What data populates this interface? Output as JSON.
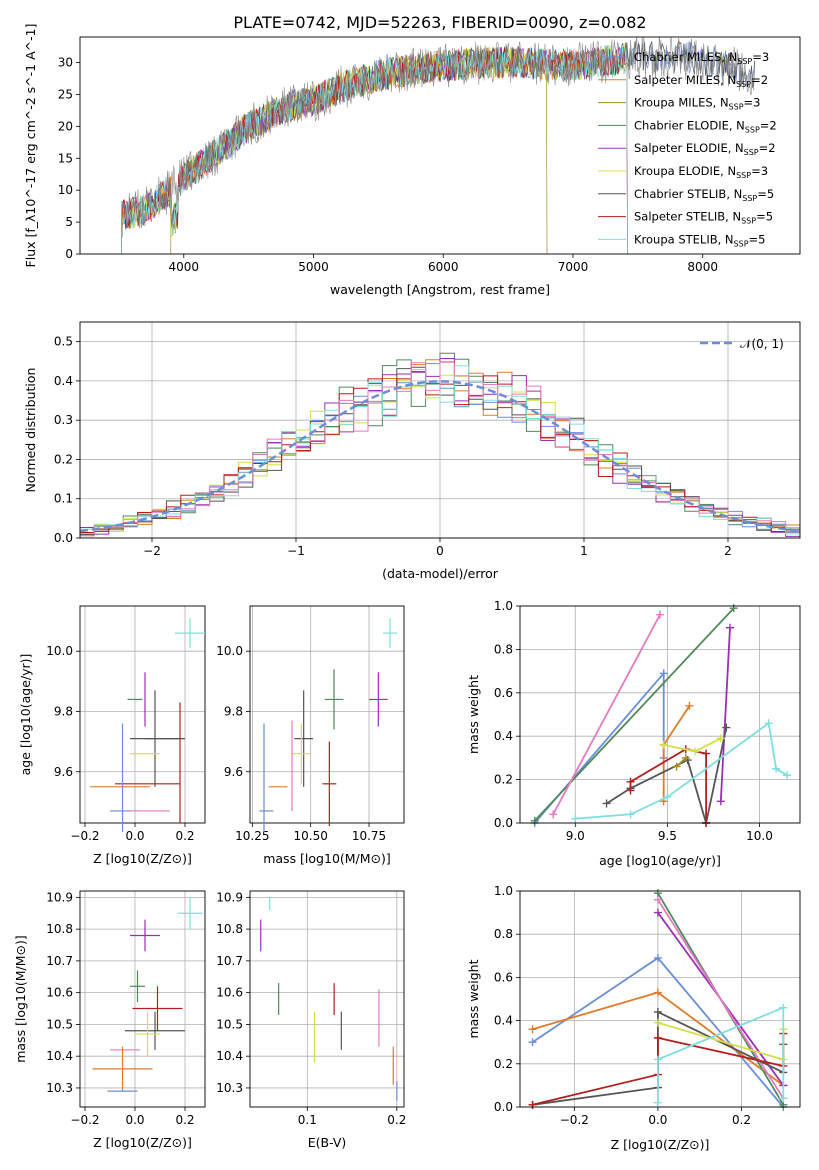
{
  "figure_title": "PLATE=0742, MJD=52263, FIBERID=0090, z=0.082",
  "colors": {
    "chabrier_miles": "#6b8ed6",
    "salpeter_miles": "#e07b2a",
    "kroupa_miles": "#a58a2a",
    "chabrier_elodie": "#4f8a5b",
    "salpeter_elodie": "#9b30b5",
    "kroupa_elodie": "#d4e04a",
    "chabrier_stelib": "#555555",
    "salpeter_stelib": "#b51e1e",
    "kroupa_stelib": "#7fdfe0",
    "pink": "#e67bbf",
    "normal_curve": "#6b8ed6"
  },
  "chart_data": [
    {
      "id": "spectrum",
      "type": "line",
      "title": "PLATE=0742, MJD=52263, FIBERID=0090, z=0.082",
      "xlabel": "wavelength [Angstrom, rest frame]",
      "ylabel": "Flux [f_λ10^-17 erg cm^-2 s^-1 A^-1]",
      "xlim": [
        3200,
        8750
      ],
      "ylim": [
        0,
        34
      ],
      "xticks": [
        4000,
        5000,
        6000,
        7000,
        8000
      ],
      "yticks": [
        0,
        5,
        10,
        15,
        20,
        25,
        30
      ],
      "legend_position": "top-right",
      "legend": [
        "Chabrier MILES, N_SSP=3",
        "Salpeter MILES, N_SSP=2",
        "Kroupa MILES, N_SSP=3",
        "Chabrier ELODIE, N_SSP=2",
        "Salpeter ELODIE, N_SSP=2",
        "Kroupa ELODIE, N_SSP=3",
        "Chabrier STELIB, N_SSP=5",
        "Salpeter STELIB, N_SSP=5",
        "Kroupa STELIB, N_SSP=5"
      ],
      "continuum": {
        "x": [
          3520,
          3700,
          3900,
          4000,
          4200,
          4500,
          4800,
          5000,
          5200,
          5500,
          5800,
          6000,
          6300,
          6600,
          6900,
          7200,
          7500,
          7800,
          8100,
          8400
        ],
        "y": [
          6,
          7,
          10,
          12,
          15,
          20,
          23,
          24,
          26,
          28,
          29,
          29.5,
          30,
          30,
          29.5,
          30,
          31,
          31,
          30,
          28
        ]
      },
      "model_ranges": [
        {
          "series": 0,
          "x0": 3520,
          "x1": 8400
        },
        {
          "series": 1,
          "x0": 3520,
          "x1": 7420
        },
        {
          "series": 2,
          "x0": 3900,
          "x1": 6800
        },
        {
          "series": 3,
          "x0": 3520,
          "x1": 7420
        },
        {
          "series": 4,
          "x0": 3520,
          "x1": 7420
        },
        {
          "series": 5,
          "x0": 3520,
          "x1": 7420
        },
        {
          "series": 6,
          "x0": 3520,
          "x1": 8400
        },
        {
          "series": 7,
          "x0": 3520,
          "x1": 7420
        },
        {
          "series": 8,
          "x0": 3520,
          "x1": 7420
        }
      ]
    },
    {
      "id": "residual_hist",
      "type": "bar",
      "xlabel": "(data-model)/error",
      "ylabel": "Normed distribution",
      "xlim": [
        -2.5,
        2.5
      ],
      "ylim": [
        0,
        0.55
      ],
      "xticks": [
        -2,
        -1,
        0,
        1,
        2
      ],
      "yticks": [
        0.0,
        0.1,
        0.2,
        0.3,
        0.4,
        0.5
      ],
      "bin_width": 0.1,
      "legend": [
        "𝒩(0, 1)"
      ],
      "legend_position": "top-right",
      "grid": true
    },
    {
      "id": "age_vs_Z",
      "type": "scatter",
      "xlabel": "Z [log10(Z/Z⊙)]",
      "ylabel": "age [log10(age/yr)]",
      "xlim": [
        -0.22,
        0.28
      ],
      "ylim": [
        9.43,
        10.15
      ],
      "xticks": [
        -0.2,
        0.0,
        0.2
      ],
      "yticks": [
        9.6,
        9.8,
        10.0
      ],
      "points": [
        {
          "x": 0.22,
          "y": 10.06,
          "xerr": 0.06,
          "yerr": 0.05,
          "series": 8
        },
        {
          "x": 0.04,
          "y": 9.84,
          "xerr": 0.0,
          "yerr": 0.09,
          "series": 4
        },
        {
          "x": 0.0,
          "y": 9.84,
          "xerr": 0.03,
          "yerr": 0.0,
          "series": 3
        },
        {
          "x": 0.08,
          "y": 9.71,
          "xerr": 0.1,
          "yerr": 0.16,
          "series": 6
        },
        {
          "x": 0.12,
          "y": 9.71,
          "xerr": 0.08,
          "yerr": 0.0,
          "series": 6
        },
        {
          "x": 0.18,
          "y": 9.63,
          "xerr": 0.0,
          "yerr": 0.2,
          "series": 7
        },
        {
          "x": 0.05,
          "y": 9.56,
          "xerr": 0.13,
          "yerr": 0.0,
          "series": 7
        },
        {
          "x": 0.04,
          "y": 9.66,
          "xerr": 0.06,
          "yerr": 0.0,
          "series": 5
        },
        {
          "x": -0.05,
          "y": 9.58,
          "xerr": 0.0,
          "yerr": 0.18,
          "series": 0
        },
        {
          "x": -0.06,
          "y": 9.55,
          "xerr": 0.12,
          "yerr": 0.0,
          "series": 1
        },
        {
          "x": -0.04,
          "y": 9.47,
          "xerr": 0.06,
          "yerr": 0.0,
          "series": 0
        },
        {
          "x": 0.06,
          "y": 9.47,
          "xerr": 0.08,
          "yerr": 0.0,
          "series": 9
        }
      ]
    },
    {
      "id": "age_vs_mass",
      "type": "scatter",
      "xlabel": "mass [log10(M/M⊙)]",
      "ylabel": "",
      "xlim": [
        10.24,
        10.9
      ],
      "ylim": [
        9.43,
        10.15
      ],
      "xticks": [
        10.25,
        10.5,
        10.75
      ],
      "yticks": [
        9.6,
        9.8,
        10.0
      ],
      "points": [
        {
          "x": 10.84,
          "y": 10.06,
          "xerr": 0.03,
          "yerr": 0.05,
          "series": 8
        },
        {
          "x": 10.79,
          "y": 9.84,
          "xerr": 0.04,
          "yerr": 0.09,
          "series": 4
        },
        {
          "x": 10.6,
          "y": 9.84,
          "xerr": 0.04,
          "yerr": 0.1,
          "series": 3
        },
        {
          "x": 10.47,
          "y": 9.71,
          "xerr": 0.04,
          "yerr": 0.16,
          "series": 6
        },
        {
          "x": 10.58,
          "y": 9.56,
          "xerr": 0.03,
          "yerr": 0.14,
          "series": 7
        },
        {
          "x": 10.46,
          "y": 9.66,
          "xerr": 0.04,
          "yerr": 0.1,
          "series": 5
        },
        {
          "x": 10.36,
          "y": 9.55,
          "xerr": 0.04,
          "yerr": 0.0,
          "series": 1
        },
        {
          "x": 10.3,
          "y": 9.58,
          "xerr": 0.0,
          "yerr": 0.18,
          "series": 0
        },
        {
          "x": 10.31,
          "y": 9.47,
          "xerr": 0.03,
          "yerr": 0.0,
          "series": 0
        },
        {
          "x": 10.42,
          "y": 9.62,
          "xerr": 0.0,
          "yerr": 0.15,
          "series": 9
        }
      ]
    },
    {
      "id": "massweight_vs_age",
      "type": "line",
      "xlabel": "age [log10(age/yr)]",
      "ylabel": "mass weight",
      "xlim": [
        8.7,
        10.22
      ],
      "ylim": [
        0,
        1
      ],
      "xticks": [
        9.0,
        9.5,
        10.0
      ],
      "yticks": [
        0.0,
        0.2,
        0.4,
        0.6,
        0.8,
        1.0
      ],
      "series": [
        {
          "series": 0,
          "x": [
            8.78,
            9.48,
            9.48
          ],
          "y": [
            0.0,
            0.69,
            0.3
          ]
        },
        {
          "series": 1,
          "x": [
            9.48,
            9.48,
            9.62
          ],
          "y": [
            0.1,
            0.36,
            0.54
          ]
        },
        {
          "series": 3,
          "x": [
            8.78,
            9.86
          ],
          "y": [
            0.01,
            0.99
          ]
        },
        {
          "series": 9,
          "x": [
            8.88,
            9.46
          ],
          "y": [
            0.04,
            0.96
          ]
        },
        {
          "series": 4,
          "x": [
            9.79,
            9.84
          ],
          "y": [
            0.1,
            0.9
          ]
        },
        {
          "series": 6,
          "x": [
            9.17,
            9.3,
            9.61,
            9.71,
            9.82
          ],
          "y": [
            0.09,
            0.16,
            0.29,
            0.0,
            0.44
          ]
        },
        {
          "series": 7,
          "x": [
            9.3,
            9.3,
            9.6,
            9.71,
            9.71
          ],
          "y": [
            0.15,
            0.19,
            0.34,
            0.32,
            0.0
          ]
        },
        {
          "series": 5,
          "x": [
            9.48,
            9.65,
            9.79
          ],
          "y": [
            0.36,
            0.33,
            0.39
          ]
        },
        {
          "series": 2,
          "x": [
            9.55,
            9.6
          ],
          "y": [
            0.26,
            0.3
          ]
        },
        {
          "series": 8,
          "x": [
            9.0,
            9.3,
            9.5,
            10.05,
            10.09,
            10.15
          ],
          "y": [
            0.02,
            0.04,
            0.12,
            0.46,
            0.25,
            0.22
          ]
        }
      ]
    },
    {
      "id": "mass_vs_Z",
      "type": "scatter",
      "xlabel": "Z [log10(Z/Z⊙)]",
      "ylabel": "mass [log10(M/M⊙)]",
      "xlim": [
        -0.22,
        0.28
      ],
      "ylim": [
        10.24,
        10.92
      ],
      "xticks": [
        -0.2,
        0.0,
        0.2
      ],
      "yticks": [
        10.3,
        10.4,
        10.5,
        10.6,
        10.7,
        10.8,
        10.9
      ],
      "points": [
        {
          "x": 0.22,
          "y": 10.85,
          "xerr": 0.05,
          "yerr": 0.05,
          "series": 8
        },
        {
          "x": 0.04,
          "y": 10.78,
          "xerr": 0.06,
          "yerr": 0.05,
          "series": 4
        },
        {
          "x": 0.01,
          "y": 10.62,
          "xerr": 0.03,
          "yerr": 0.05,
          "series": 3
        },
        {
          "x": 0.09,
          "y": 10.55,
          "xerr": 0.1,
          "yerr": 0.07,
          "series": 7
        },
        {
          "x": 0.08,
          "y": 10.48,
          "xerr": 0.12,
          "yerr": 0.06,
          "series": 6
        },
        {
          "x": 0.05,
          "y": 10.47,
          "xerr": 0.05,
          "yerr": 0.07,
          "series": 5
        },
        {
          "x": -0.04,
          "y": 10.42,
          "xerr": 0.06,
          "yerr": 0.0,
          "series": 9
        },
        {
          "x": -0.05,
          "y": 10.36,
          "xerr": 0.12,
          "yerr": 0.07,
          "series": 1
        },
        {
          "x": -0.05,
          "y": 10.29,
          "xerr": 0.06,
          "yerr": 0.0,
          "series": 0
        }
      ]
    },
    {
      "id": "mass_vs_ebv",
      "type": "scatter",
      "xlabel": "E(B-V)",
      "ylabel": "",
      "xlim": [
        0.036,
        0.208
      ],
      "ylim": [
        10.24,
        10.92
      ],
      "xticks": [
        0.1,
        0.2
      ],
      "yticks": [
        10.3,
        10.4,
        10.5,
        10.6,
        10.7,
        10.8,
        10.9
      ],
      "points": [
        {
          "x": 0.058,
          "y": 10.88,
          "yerr": 0.02,
          "series": 8
        },
        {
          "x": 0.048,
          "y": 10.78,
          "yerr": 0.05,
          "series": 4
        },
        {
          "x": 0.068,
          "y": 10.58,
          "yerr": 0.05,
          "series": 3
        },
        {
          "x": 0.13,
          "y": 10.58,
          "yerr": 0.05,
          "series": 7
        },
        {
          "x": 0.138,
          "y": 10.48,
          "yerr": 0.06,
          "series": 6
        },
        {
          "x": 0.108,
          "y": 10.46,
          "yerr": 0.08,
          "series": 5
        },
        {
          "x": 0.18,
          "y": 10.52,
          "yerr": 0.09,
          "series": 9
        },
        {
          "x": 0.196,
          "y": 10.37,
          "yerr": 0.06,
          "series": 1
        },
        {
          "x": 0.2,
          "y": 10.29,
          "yerr": 0.03,
          "series": 0
        }
      ]
    },
    {
      "id": "massweight_vs_Z",
      "type": "line",
      "xlabel": "Z [log10(Z/Z⊙)]",
      "ylabel": "mass weight",
      "xlim": [
        -0.33,
        0.34
      ],
      "ylim": [
        0,
        1
      ],
      "xticks": [
        -0.2,
        0.0,
        0.2
      ],
      "yticks": [
        0.0,
        0.2,
        0.4,
        0.6,
        0.8,
        1.0
      ],
      "series": [
        {
          "series": 0,
          "x": [
            -0.3,
            0.0,
            0.3
          ],
          "y": [
            0.3,
            0.69,
            0.0
          ]
        },
        {
          "series": 1,
          "x": [
            -0.3,
            0.0,
            0.3
          ],
          "y": [
            0.36,
            0.53,
            0.1
          ]
        },
        {
          "series": 3,
          "x": [
            0.0,
            0.3
          ],
          "y": [
            0.99,
            0.01
          ]
        },
        {
          "series": 4,
          "x": [
            0.0,
            0.3
          ],
          "y": [
            0.9,
            0.1
          ]
        },
        {
          "series": 9,
          "x": [
            0.0,
            0.3
          ],
          "y": [
            0.96,
            0.04
          ]
        },
        {
          "series": 6,
          "x": [
            -0.3,
            0.0,
            0.0,
            0.3,
            0.3
          ],
          "y": [
            0.01,
            0.09,
            0.44,
            0.16,
            0.29
          ]
        },
        {
          "series": 7,
          "x": [
            -0.3,
            0.0,
            0.0,
            0.3,
            0.3
          ],
          "y": [
            0.01,
            0.15,
            0.32,
            0.19,
            0.34
          ]
        },
        {
          "series": 5,
          "x": [
            0.0,
            0.3,
            0.3
          ],
          "y": [
            0.39,
            0.22,
            0.36
          ]
        },
        {
          "series": 8,
          "x": [
            0.0,
            0.0,
            0.3,
            0.3
          ],
          "y": [
            0.02,
            0.22,
            0.46,
            0.04
          ]
        }
      ]
    }
  ]
}
